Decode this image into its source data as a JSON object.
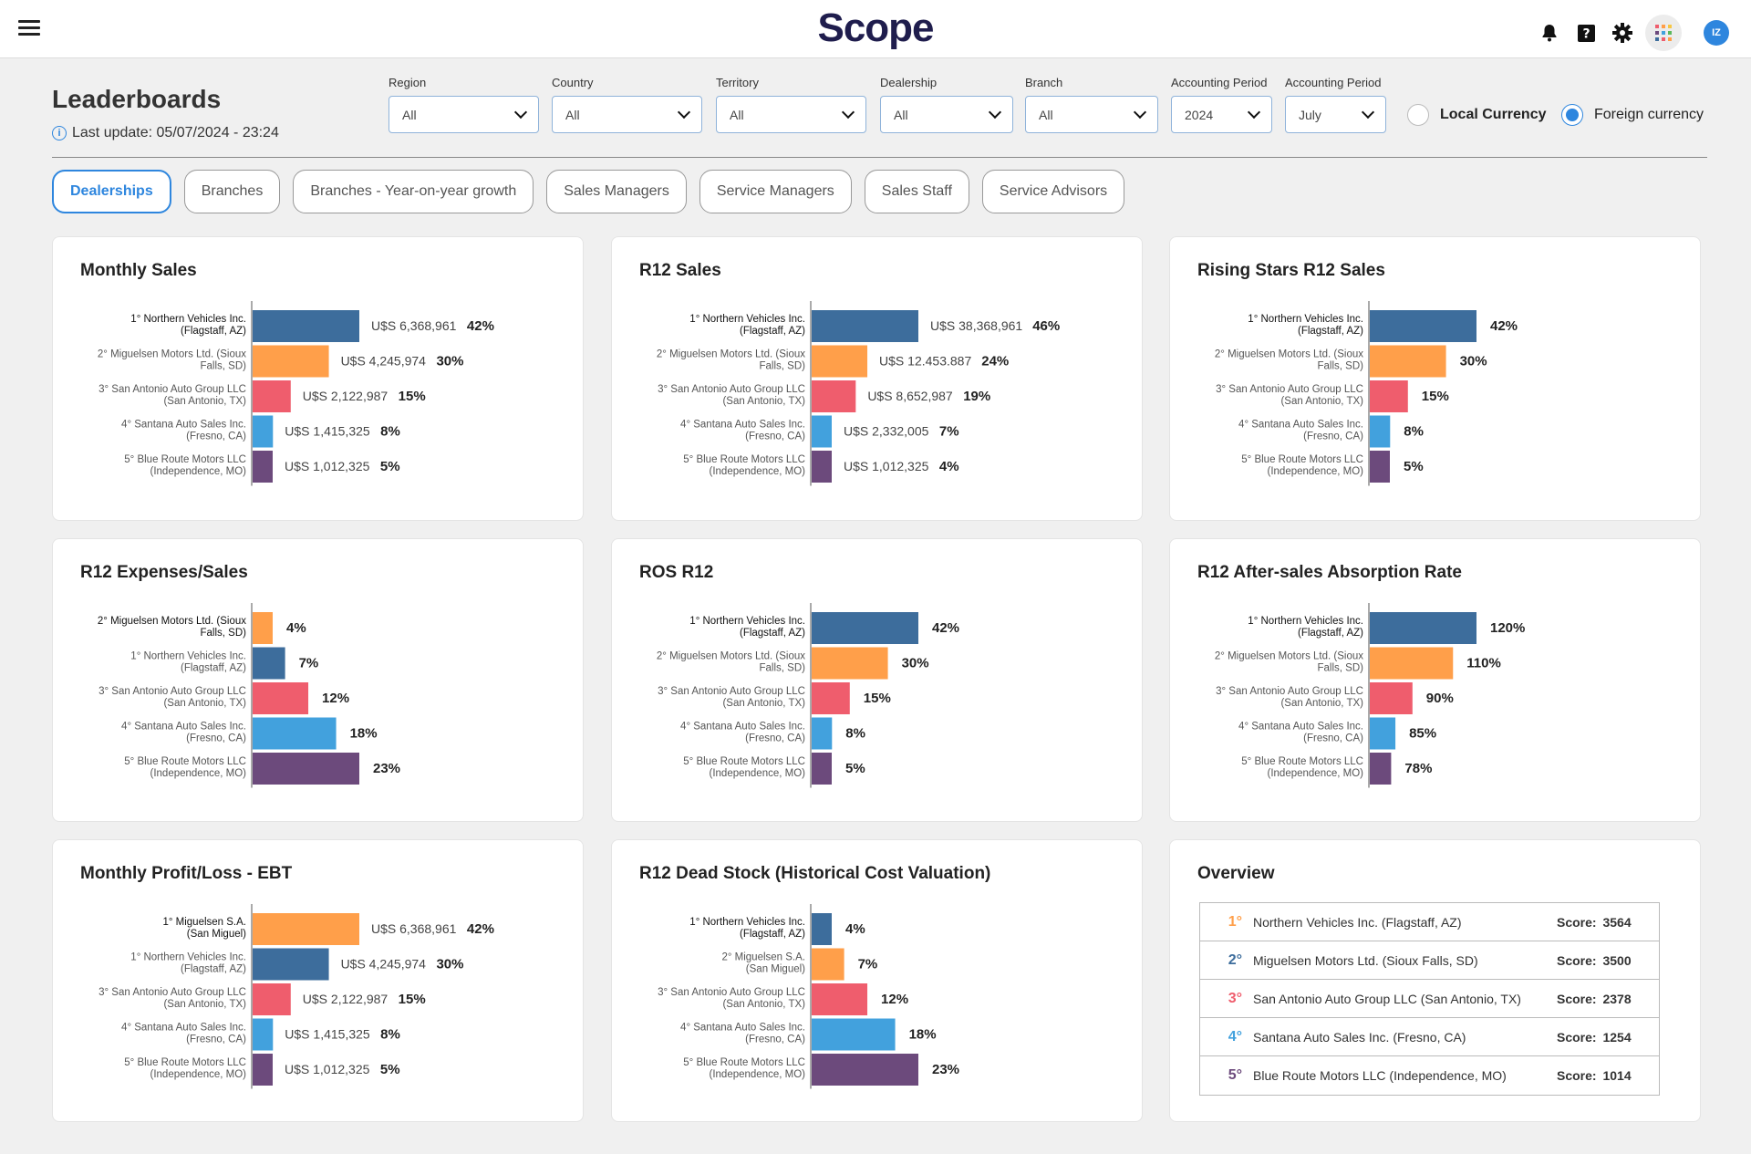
{
  "app": {
    "logo": "Scope",
    "avatar_initials": "IZ",
    "icons": [
      "menu-icon",
      "bell-icon",
      "help-icon",
      "gear-icon",
      "apps-grid-icon"
    ]
  },
  "header": {
    "title": "Leaderboards",
    "last_update": "Last update: 05/07/2024 - 23:24"
  },
  "filters": [
    {
      "label": "Region",
      "value": "All"
    },
    {
      "label": "Country",
      "value": "All"
    },
    {
      "label": "Territory",
      "value": "All"
    },
    {
      "label": "Dealership",
      "value": "All"
    },
    {
      "label": "Branch",
      "value": "All"
    },
    {
      "label": "Accounting Period",
      "value": "2024"
    },
    {
      "label": "Accounting Period",
      "value": "July"
    }
  ],
  "currency": {
    "local_label": "Local Currency",
    "foreign_label": "Foreign currency",
    "selected": "foreign"
  },
  "tabs": [
    {
      "label": "Dealerships",
      "active": true
    },
    {
      "label": "Branches",
      "active": false
    },
    {
      "label": "Branches - Year-on-year growth",
      "active": false
    },
    {
      "label": "Sales Managers",
      "active": false
    },
    {
      "label": "Service Managers",
      "active": false
    },
    {
      "label": "Sales Staff",
      "active": false
    },
    {
      "label": "Service Advisors",
      "active": false
    }
  ],
  "colors": {
    "navy": "#3d6d9c",
    "orange": "#ff9f4a",
    "red": "#ef5d6d",
    "sky": "#42a1dd",
    "purple": "#6c4a7c",
    "accent": "#2e86de",
    "rank_colors": [
      "#ff9f4a",
      "#3d6d9c",
      "#ef5d6d",
      "#42a1dd",
      "#6c4a7c"
    ]
  },
  "chart_data": [
    {
      "title": "Monthly Sales",
      "type": "bar",
      "categories": [
        [
          "1° Northern Vehicles Inc.",
          "(Flagstaff, AZ)"
        ],
        [
          "2° Miguelsen Motors Ltd. (Sioux",
          "Falls, SD)"
        ],
        [
          "3° San Antonio Auto Group LLC",
          "(San Antonio, TX)"
        ],
        [
          "4° Santana Auto Sales Inc.",
          "(Fresno, CA)"
        ],
        [
          "5° Blue Route Motors LLC",
          "(Independence, MO)"
        ]
      ],
      "values": [
        42,
        30,
        15,
        8,
        5
      ],
      "value_labels": [
        "42%",
        "30%",
        "15%",
        "8%",
        "5%"
      ],
      "amounts": [
        "U$S 6,368,961",
        "U$S 4,245,974",
        "U$S 2,122,987",
        "U$S 1,415,325",
        "U$S 1,012,325"
      ],
      "colors": [
        "navy",
        "orange",
        "red",
        "sky",
        "purple"
      ],
      "vmax": 42
    },
    {
      "title": "R12 Sales",
      "type": "bar",
      "categories": [
        [
          "1° Northern Vehicles Inc.",
          "(Flagstaff, AZ)"
        ],
        [
          "2° Miguelsen Motors Ltd. (Sioux",
          "Falls, SD)"
        ],
        [
          "3° San Antonio Auto Group LLC",
          "(San Antonio, TX)"
        ],
        [
          "4° Santana Auto Sales Inc.",
          "(Fresno, CA)"
        ],
        [
          "5° Blue Route Motors LLC",
          "(Independence, MO)"
        ]
      ],
      "values": [
        46,
        24,
        19,
        7,
        4
      ],
      "value_labels": [
        "46%",
        "24%",
        "19%",
        "7%",
        "4%"
      ],
      "amounts": [
        "U$S 38,368,961",
        "U$S 12.453.887",
        "U$S 8,652,987",
        "U$S 2,332,005",
        "U$S 1,012,325"
      ],
      "colors": [
        "navy",
        "orange",
        "red",
        "sky",
        "purple"
      ],
      "vmax": 46
    },
    {
      "title": "Rising Stars R12 Sales",
      "type": "bar",
      "categories": [
        [
          "1° Northern Vehicles Inc.",
          "(Flagstaff, AZ)"
        ],
        [
          "2° Miguelsen Motors Ltd. (Sioux",
          "Falls, SD)"
        ],
        [
          "3° San Antonio Auto Group LLC",
          "(San Antonio, TX)"
        ],
        [
          "4° Santana Auto Sales Inc.",
          "(Fresno, CA)"
        ],
        [
          "5° Blue Route Motors LLC",
          "(Independence, MO)"
        ]
      ],
      "values": [
        42,
        30,
        15,
        8,
        5
      ],
      "value_labels": [
        "42%",
        "30%",
        "15%",
        "8%",
        "5%"
      ],
      "amounts": [],
      "colors": [
        "navy",
        "orange",
        "red",
        "sky",
        "purple"
      ],
      "vmax": 42
    },
    {
      "title": "R12 Expenses/Sales",
      "type": "bar",
      "categories": [
        [
          "2° Miguelsen Motors Ltd. (Sioux",
          "Falls, SD)"
        ],
        [
          "1° Northern Vehicles Inc.",
          "(Flagstaff, AZ)"
        ],
        [
          "3° San Antonio Auto Group LLC",
          "(San Antonio, TX)"
        ],
        [
          "4° Santana Auto Sales Inc.",
          "(Fresno, CA)"
        ],
        [
          "5° Blue Route Motors LLC",
          "(Independence, MO)"
        ]
      ],
      "values": [
        4,
        7,
        12,
        18,
        23
      ],
      "value_labels": [
        "4%",
        "7%",
        "12%",
        "18%",
        "23%"
      ],
      "amounts": [],
      "colors": [
        "orange",
        "navy",
        "red",
        "sky",
        "purple"
      ],
      "vmax": 23
    },
    {
      "title": "ROS R12",
      "type": "bar",
      "categories": [
        [
          "1° Northern Vehicles Inc.",
          "(Flagstaff, AZ)"
        ],
        [
          "2° Miguelsen Motors Ltd. (Sioux",
          "Falls, SD)"
        ],
        [
          "3° San Antonio Auto Group LLC",
          "(San Antonio, TX)"
        ],
        [
          "4° Santana Auto Sales Inc.",
          "(Fresno, CA)"
        ],
        [
          "5° Blue Route Motors LLC",
          "(Independence, MO)"
        ]
      ],
      "values": [
        42,
        30,
        15,
        8,
        5
      ],
      "value_labels": [
        "42%",
        "30%",
        "15%",
        "8%",
        "5%"
      ],
      "amounts": [],
      "colors": [
        "navy",
        "orange",
        "red",
        "sky",
        "purple"
      ],
      "vmax": 42
    },
    {
      "title": "R12 After-sales Absorption Rate",
      "type": "bar",
      "categories": [
        [
          "1° Northern Vehicles Inc.",
          "(Flagstaff, AZ)"
        ],
        [
          "2° Miguelsen Motors Ltd. (Sioux",
          "Falls, SD)"
        ],
        [
          "3° San Antonio Auto Group LLC",
          "(San Antonio, TX)"
        ],
        [
          "4° Santana Auto Sales Inc.",
          "(Fresno, CA)"
        ],
        [
          "5° Blue Route Motors LLC",
          "(Independence, MO)"
        ]
      ],
      "values": [
        120,
        110,
        90,
        85,
        78
      ],
      "value_labels": [
        "120%",
        "110%",
        "90%",
        "85%",
        "78%"
      ],
      "amounts": [],
      "colors": [
        "navy",
        "orange",
        "red",
        "sky",
        "purple"
      ],
      "bar_fractions": [
        1.0,
        0.78,
        0.4,
        0.24,
        0.2
      ]
    },
    {
      "title": "Monthly Profit/Loss - EBT",
      "type": "bar",
      "categories": [
        [
          "1° Miguelsen S.A.",
          "(San Miguel)"
        ],
        [
          "1° Northern Vehicles Inc.",
          "(Flagstaff, AZ)"
        ],
        [
          "3° San Antonio Auto Group LLC",
          "(San Antonio, TX)"
        ],
        [
          "4° Santana Auto Sales Inc.",
          "(Fresno, CA)"
        ],
        [
          "5° Blue Route Motors LLC",
          "(Independence, MO)"
        ]
      ],
      "values": [
        42,
        30,
        15,
        8,
        5
      ],
      "value_labels": [
        "42%",
        "30%",
        "15%",
        "8%",
        "5%"
      ],
      "amounts": [
        "U$S 6,368,961",
        "U$S 4,245,974",
        "U$S 2,122,987",
        "U$S 1,415,325",
        "U$S 1,012,325"
      ],
      "colors": [
        "orange",
        "navy",
        "red",
        "sky",
        "purple"
      ],
      "vmax": 42
    },
    {
      "title": "R12 Dead Stock (Historical Cost Valuation)",
      "type": "bar",
      "categories": [
        [
          "1° Northern Vehicles Inc.",
          "(Flagstaff, AZ)"
        ],
        [
          "2° Miguelsen S.A.",
          "(San Miguel)"
        ],
        [
          "3° San Antonio Auto Group LLC",
          "(San Antonio, TX)"
        ],
        [
          "4° Santana Auto Sales Inc.",
          "(Fresno, CA)"
        ],
        [
          "5° Blue Route Motors LLC",
          "(Independence, MO)"
        ]
      ],
      "values": [
        4,
        7,
        12,
        18,
        23
      ],
      "value_labels": [
        "4%",
        "7%",
        "12%",
        "18%",
        "23%"
      ],
      "amounts": [],
      "colors": [
        "navy",
        "orange",
        "red",
        "sky",
        "purple"
      ],
      "vmax": 23
    }
  ],
  "overview": {
    "title": "Overview",
    "score_label": "Score:",
    "rows": [
      {
        "rank": "1°",
        "name": "Northern Vehicles Inc. (Flagstaff, AZ)",
        "score": "3564"
      },
      {
        "rank": "2°",
        "name": "Miguelsen Motors Ltd. (Sioux Falls, SD)",
        "score": "3500"
      },
      {
        "rank": "3°",
        "name": "San Antonio Auto Group LLC (San Antonio, TX)",
        "score": "2378"
      },
      {
        "rank": "4°",
        "name": "Santana Auto Sales Inc. (Fresno, CA)",
        "score": "1254"
      },
      {
        "rank": "5°",
        "name": "Blue Route Motors LLC (Independence, MO)",
        "score": "1014"
      }
    ]
  }
}
